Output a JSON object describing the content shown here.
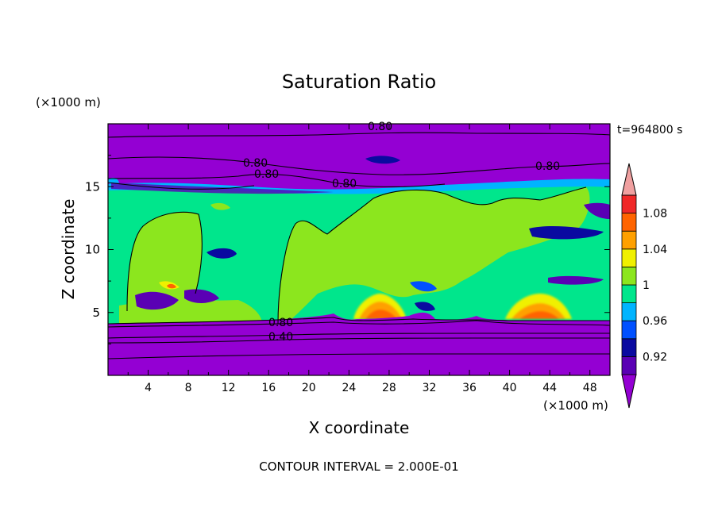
{
  "chart_data": {
    "type": "heatmap",
    "title": "Saturation Ratio",
    "xlabel": "X coordinate",
    "ylabel": "Z coordinate",
    "x_unit": "(×1000 m)",
    "y_unit": "(×1000 m)",
    "time_label": "t=964800 s",
    "footer": "CONTOUR INTERVAL = 2.000E-01",
    "xlim": [
      0,
      50
    ],
    "ylim": [
      0,
      20
    ],
    "x_ticks": [
      "4",
      "8",
      "12",
      "16",
      "20",
      "24",
      "28",
      "32",
      "36",
      "40",
      "44",
      "48"
    ],
    "y_ticks": [
      "5",
      "10",
      "15"
    ],
    "colorbar": {
      "labels": [
        "0.92",
        "0.96",
        "1",
        "1.04",
        "1.08"
      ],
      "levels": [
        0.9,
        0.92,
        0.94,
        0.96,
        0.98,
        1.0,
        1.02,
        1.04,
        1.06,
        1.08,
        1.1
      ],
      "colors": [
        "#9400d3",
        "#5a00b4",
        "#0a0aa0",
        "#0050ff",
        "#00b4ff",
        "#00e68c",
        "#8ce61e",
        "#f0f000",
        "#ffa000",
        "#ff6400",
        "#f02828",
        "#f0a0a0"
      ]
    },
    "contour_labels": [
      "0.80",
      "0.80",
      "0.80",
      "0.80",
      "0.80",
      "0.80",
      "0.40"
    ]
  }
}
